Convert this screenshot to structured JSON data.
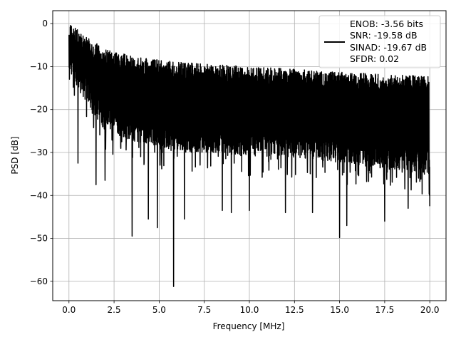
{
  "chart_data": {
    "type": "line",
    "xlabel": "Frequency [MHz]",
    "ylabel": "PSD [dB]",
    "xlim": [
      -0.9,
      20.9
    ],
    "ylim": [
      -64.5,
      3.0
    ],
    "xticks": [
      0.0,
      2.5,
      5.0,
      7.5,
      10.0,
      12.5,
      15.0,
      17.5,
      20.0
    ],
    "xtick_labels": [
      "0.0",
      "2.5",
      "5.0",
      "7.5",
      "10.0",
      "12.5",
      "15.0",
      "17.5",
      "20.0"
    ],
    "yticks": [
      0,
      -10,
      -20,
      -30,
      -40,
      -50,
      -60
    ],
    "ytick_labels": [
      "0",
      "−10",
      "−20",
      "−30",
      "−40",
      "−50",
      "−60"
    ],
    "grid": true,
    "legend_position": "top-right",
    "legend": {
      "lines": [
        "ENOB: -3.56 bits",
        "SNR: -19.58 dB",
        "SINAD: -19.67 dB",
        "SFDR: 0.02"
      ]
    },
    "series": [
      {
        "color": "#000000",
        "x_range": [
          0.0,
          20.0
        ],
        "upper_envelope_db": [
          0,
          -6,
          -8,
          -9,
          -9.5,
          -10,
          -10.5,
          -11,
          -11.5,
          -12,
          -12
        ],
        "lower_envelope_db": [
          -12,
          -25,
          -28,
          -30,
          -30,
          -31,
          -31,
          -32,
          -33,
          -34,
          -35
        ],
        "deep_nulls": [
          {
            "x": 0.5,
            "y": -32.5
          },
          {
            "x": 1.5,
            "y": -37.5
          },
          {
            "x": 2.0,
            "y": -36.5
          },
          {
            "x": 3.5,
            "y": -49.5
          },
          {
            "x": 4.4,
            "y": -45.5
          },
          {
            "x": 4.9,
            "y": -47.5
          },
          {
            "x": 5.8,
            "y": -61.2
          },
          {
            "x": 6.4,
            "y": -45.5
          },
          {
            "x": 8.5,
            "y": -43.5
          },
          {
            "x": 9.0,
            "y": -44.0
          },
          {
            "x": 10.0,
            "y": -43.5
          },
          {
            "x": 12.0,
            "y": -44.0
          },
          {
            "x": 13.5,
            "y": -44.0
          },
          {
            "x": 15.0,
            "y": -49.8
          },
          {
            "x": 15.4,
            "y": -47.0
          },
          {
            "x": 17.5,
            "y": -46.0
          },
          {
            "x": 18.8,
            "y": -43.0
          },
          {
            "x": 20.0,
            "y": -42.5
          }
        ]
      }
    ]
  }
}
